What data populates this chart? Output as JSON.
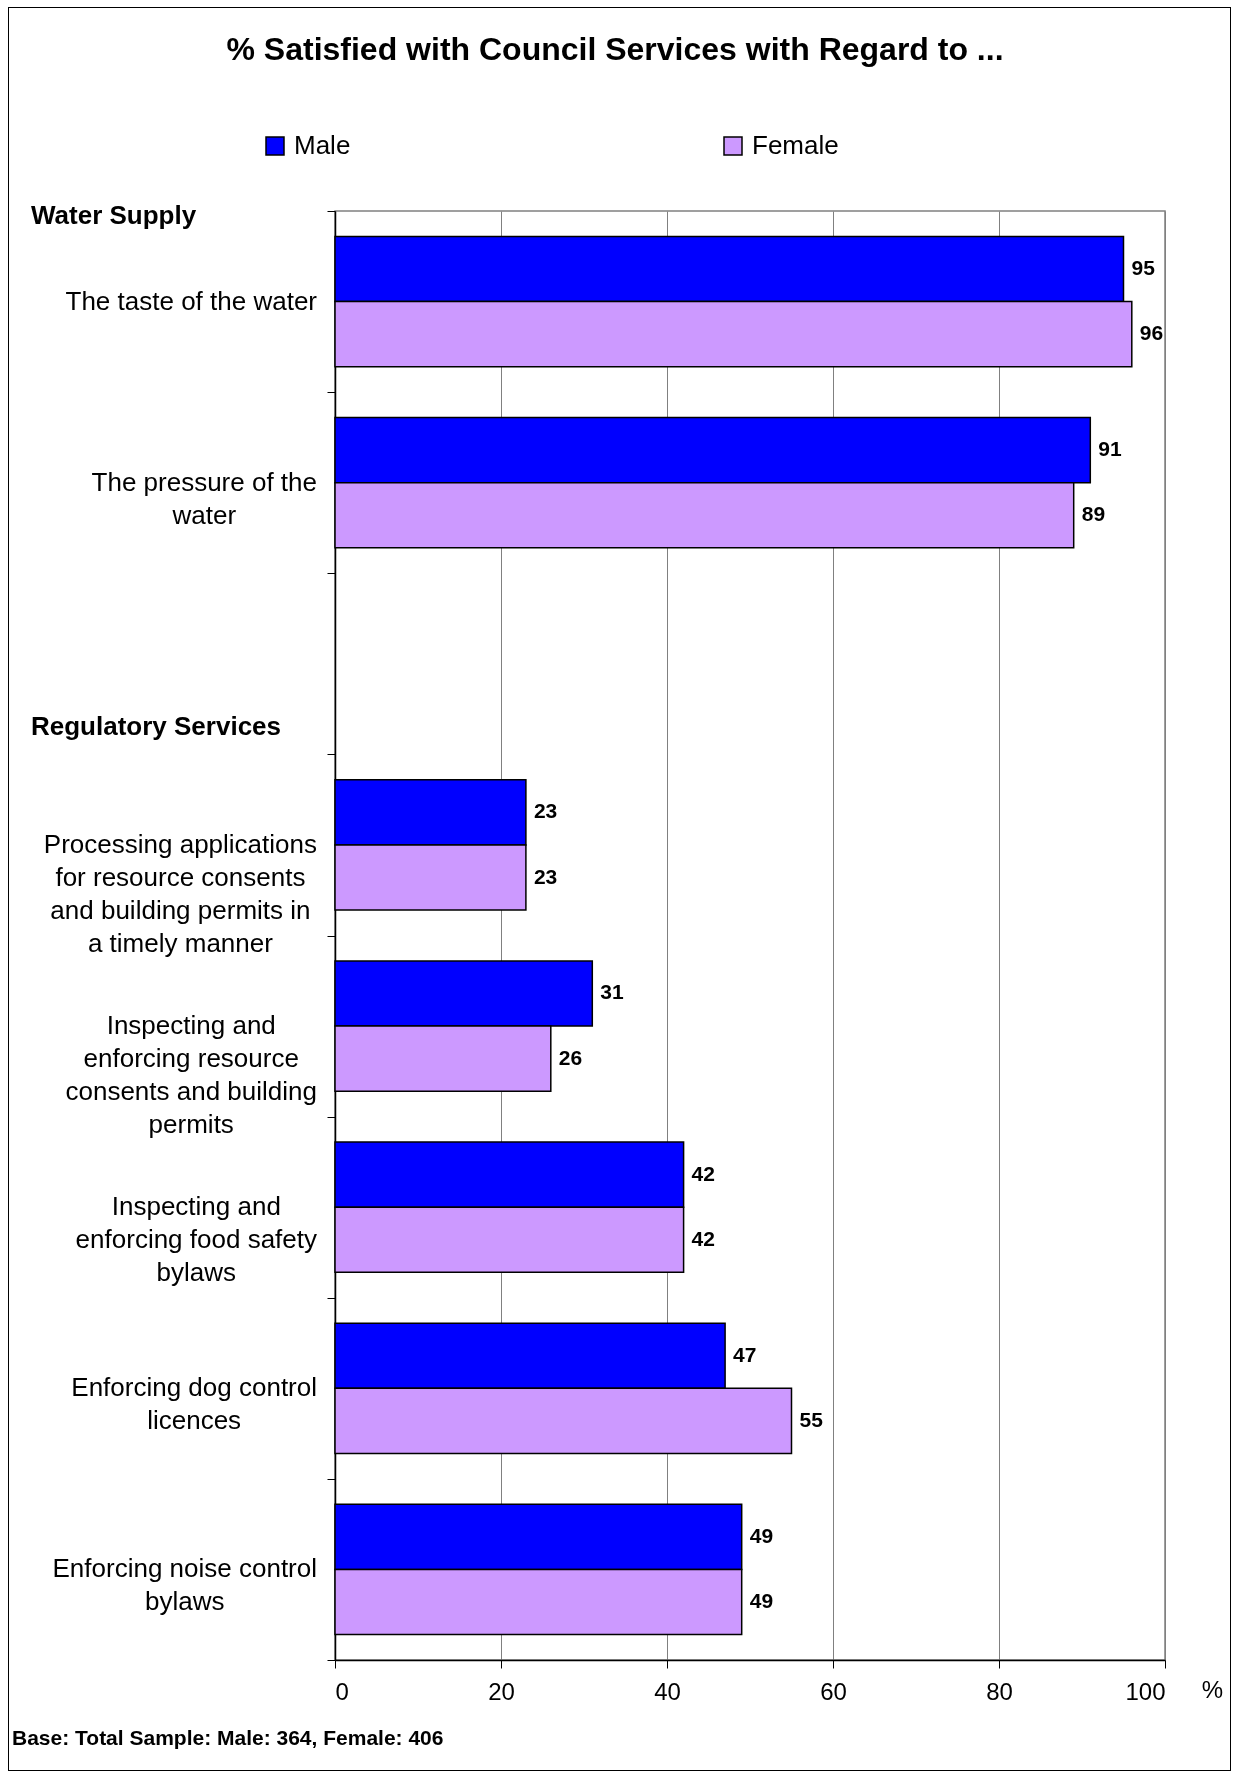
{
  "chart_data": {
    "type": "bar",
    "orientation": "horizontal",
    "title": "% Satisfied with Council Services with Regard to ...",
    "xlabel": "%",
    "categories": [
      "The taste of the water",
      "The pressure of the water",
      null,
      "Processing applications for resource consents and building permits in a timely manner",
      "Inspecting and enforcing resource consents and building permits",
      "Inspecting and enforcing food safety bylaws",
      "Enforcing dog control licences",
      "Enforcing noise control bylaws"
    ],
    "series": [
      {
        "name": "Male",
        "color": "#0000ff",
        "values": [
          95,
          91,
          null,
          23,
          31,
          42,
          47,
          49
        ]
      },
      {
        "name": "Female",
        "color": "#cc99ff",
        "values": [
          96,
          89,
          null,
          23,
          26,
          42,
          55,
          49
        ]
      }
    ],
    "xlim": [
      0,
      100
    ],
    "xticks": [
      0,
      20,
      40,
      60,
      80,
      100
    ],
    "grid": "x",
    "legend": "top",
    "data_labels": true,
    "annotations": [
      "Water Supply",
      "Regulatory Services",
      "Base: Total Sample: Male: 364, Female: 406"
    ]
  }
}
